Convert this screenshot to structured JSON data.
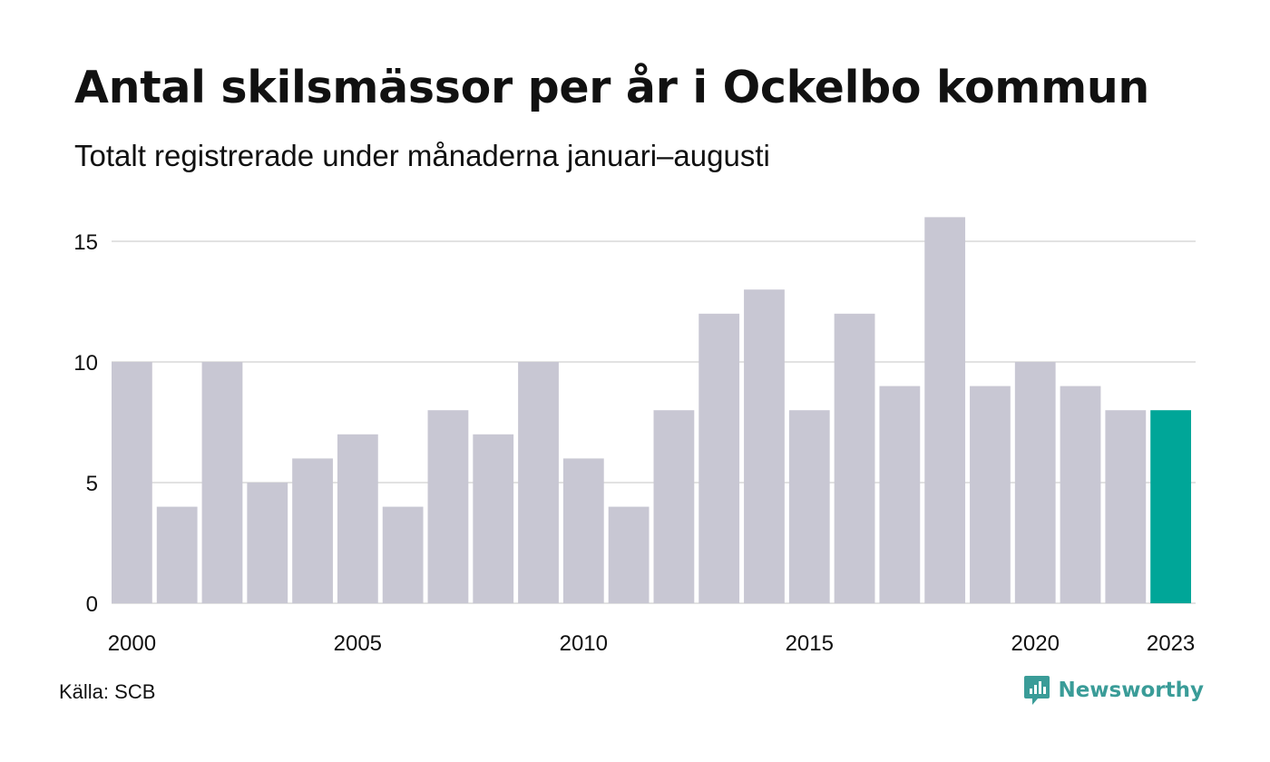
{
  "title": "Antal skilsmässor per år i Ockelbo kommun",
  "subtitle": "Totalt registrerade under månaderna januari–augusti",
  "source": "Källa: SCB",
  "brand": {
    "name": "Newsworthy",
    "icon": "newsworthy-logo-icon",
    "color": "#3a9c98"
  },
  "colors": {
    "bar": "#c8c7d3",
    "highlight": "#00a698",
    "grid": "#e2e2e2",
    "text": "#111111"
  },
  "chart_data": {
    "type": "bar",
    "title": "Antal skilsmässor per år i Ockelbo kommun",
    "subtitle": "Totalt registrerade under månaderna januari–augusti",
    "xlabel": "",
    "ylabel": "",
    "categories": [
      "2000",
      "2001",
      "2002",
      "2003",
      "2004",
      "2005",
      "2006",
      "2007",
      "2008",
      "2009",
      "2010",
      "2011",
      "2012",
      "2013",
      "2014",
      "2015",
      "2016",
      "2017",
      "2018",
      "2019",
      "2020",
      "2021",
      "2022",
      "2023"
    ],
    "values": [
      10,
      4,
      10,
      5,
      6,
      7,
      4,
      8,
      7,
      10,
      6,
      4,
      8,
      12,
      13,
      8,
      12,
      9,
      16,
      9,
      10,
      9,
      8,
      8
    ],
    "highlight_category": "2023",
    "x_tick_labels": [
      "2000",
      "2005",
      "2010",
      "2015",
      "2020",
      "2023"
    ],
    "y_ticks": [
      0,
      5,
      10,
      15
    ],
    "ylim": [
      0,
      16
    ],
    "grid": true,
    "legend": "none"
  }
}
